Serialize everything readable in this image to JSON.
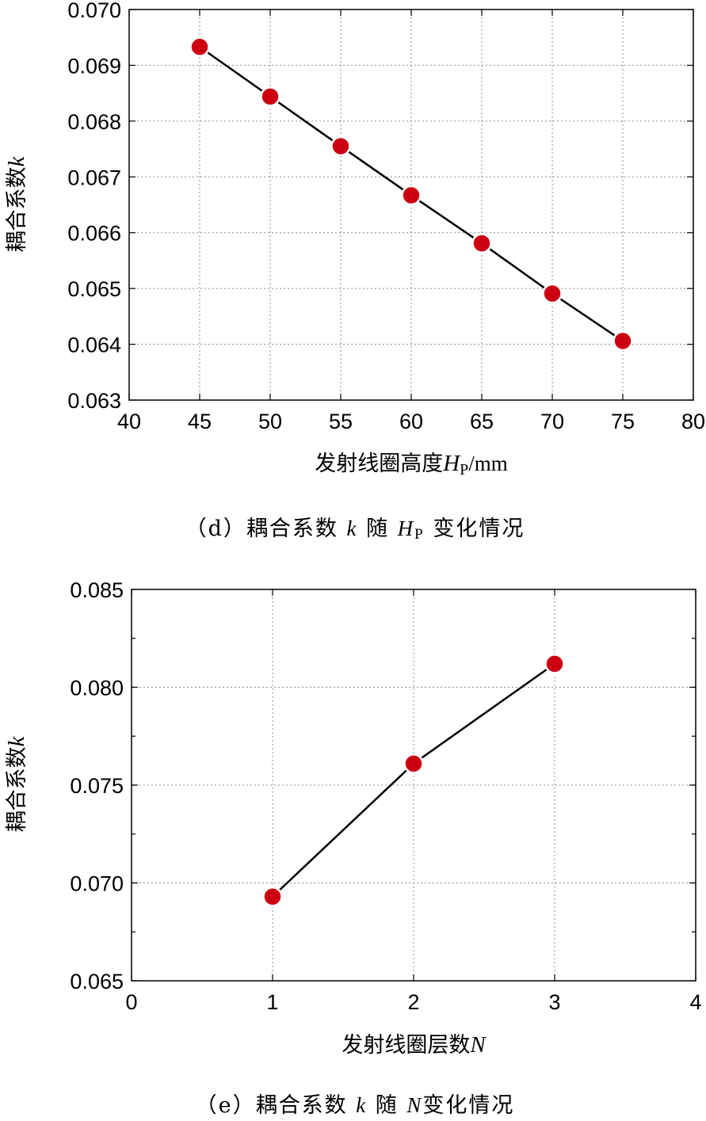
{
  "chart_data": [
    {
      "type": "line",
      "x": [
        45,
        50,
        55,
        60,
        65,
        70,
        75
      ],
      "values": [
        0.06933,
        0.06844,
        0.06755,
        0.06667,
        0.06581,
        0.06491,
        0.06406
      ],
      "xlim": [
        40,
        80
      ],
      "ylim": [
        0.063,
        0.07
      ],
      "xticks": [
        "40",
        "45",
        "50",
        "55",
        "60",
        "65",
        "70",
        "75",
        "80"
      ],
      "yticks": [
        "0.063",
        "0.064",
        "0.065",
        "0.066",
        "0.067",
        "0.068",
        "0.069",
        "0.070"
      ],
      "xlabel_text": "发射线圈高度",
      "xlabel_var": "H",
      "xlabel_sub": "P",
      "xlabel_unit": "/mm",
      "ylabel_text": "耦合系数",
      "ylabel_var": "k",
      "caption": {
        "prefix": "（d）耦合系数 ",
        "var1": "k",
        "mid": " 随 ",
        "var2": "H",
        "sub": "P",
        "suffix": " 变化情况"
      },
      "grid": true,
      "marker_color": "#cc0011",
      "line_color": "#000000"
    },
    {
      "type": "line",
      "x": [
        1,
        2,
        3
      ],
      "values": [
        0.0693,
        0.0761,
        0.0812
      ],
      "xlim": [
        0,
        4
      ],
      "ylim": [
        0.065,
        0.085
      ],
      "xticks": [
        "0",
        "1",
        "2",
        "3",
        "4"
      ],
      "yticks": [
        "0.065",
        "0.070",
        "0.075",
        "0.080",
        "0.085"
      ],
      "xlabel_text": "发射线圈层数",
      "xlabel_var": "N",
      "ylabel_text": "耦合系数",
      "ylabel_var": "k",
      "caption": {
        "prefix": "（e）耦合系数 ",
        "var1": "k",
        "mid": " 随 ",
        "var2": "N",
        "suffix": "变化情况"
      },
      "grid": true,
      "marker_color": "#cc0011",
      "line_color": "#000000"
    }
  ]
}
